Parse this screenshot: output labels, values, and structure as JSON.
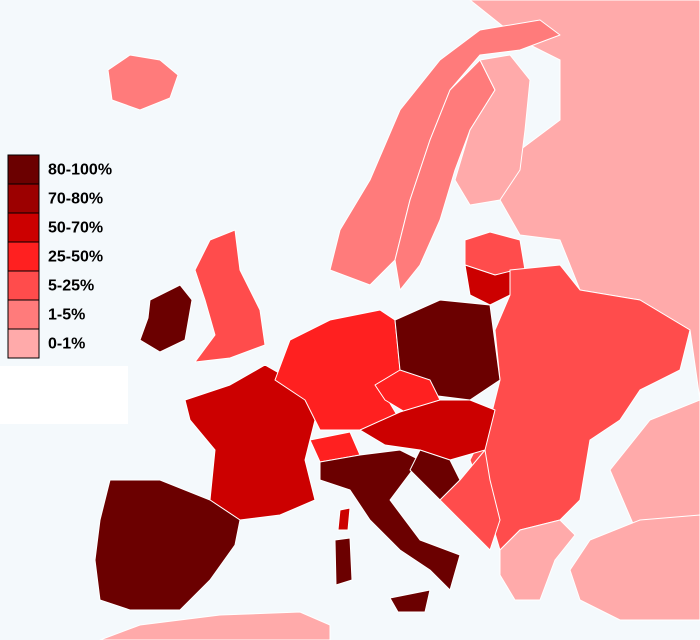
{
  "legend": {
    "items": [
      {
        "label": "80-100%",
        "color": "#6b0000"
      },
      {
        "label": "70-80%",
        "color": "#9c0000"
      },
      {
        "label": "50-70%",
        "color": "#cc0000"
      },
      {
        "label": "25-50%",
        "color": "#ff2020"
      },
      {
        "label": "5-25%",
        "color": "#ff4c4c"
      },
      {
        "label": "1-5%",
        "color": "#ff7b7b"
      },
      {
        "label": "0-1%",
        "color": "#ffaaaa"
      }
    ]
  }
}
